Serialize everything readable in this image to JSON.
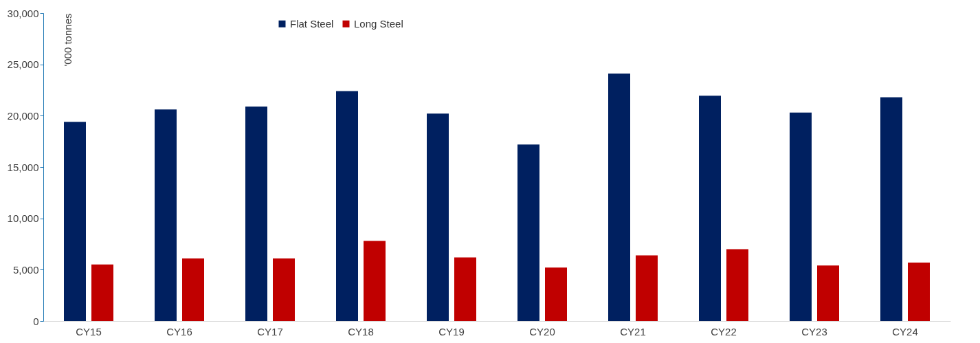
{
  "chart_data": {
    "type": "bar",
    "ylabel": "'000 tonnes",
    "categories": [
      "CY15",
      "CY16",
      "CY17",
      "CY18",
      "CY19",
      "CY20",
      "CY21",
      "CY22",
      "CY23",
      "CY24"
    ],
    "series": [
      {
        "name": "Flat Steel",
        "color": "#002060",
        "values": [
          19400,
          20600,
          20900,
          22400,
          20200,
          17200,
          24100,
          21950,
          20300,
          21800
        ]
      },
      {
        "name": "Long Steel",
        "color": "#c00000",
        "values": [
          5500,
          6100,
          6100,
          7800,
          6200,
          5200,
          6400,
          7000,
          5400,
          5700
        ]
      }
    ],
    "ylim": [
      0,
      30000
    ],
    "yticks": [
      0,
      {
        "value": 5000,
        "label": "5,000"
      },
      {
        "value": 10000,
        "label": "10,000"
      },
      {
        "value": 15000,
        "label": "15,000"
      },
      {
        "value": 20000,
        "label": "20,000"
      },
      {
        "value": 25000,
        "label": "25,000"
      },
      {
        "value": 30000,
        "label": "30,000"
      }
    ],
    "grid": false,
    "legend": "top"
  }
}
